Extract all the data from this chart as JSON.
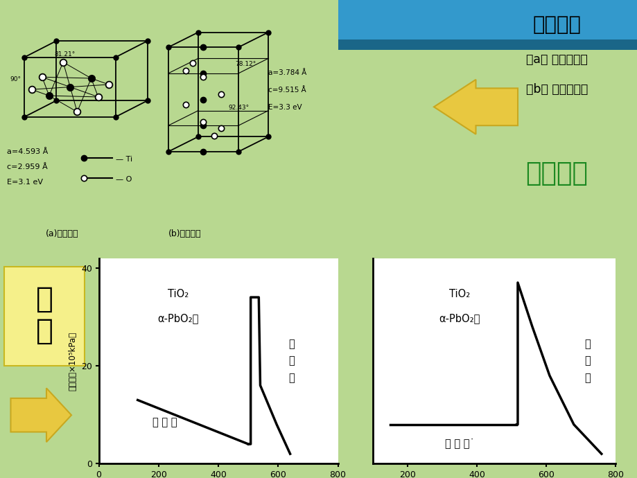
{
  "bg_main": "#b8d890",
  "top_box_bg": "#ffffff",
  "info_box_bg": "#ddeebb",
  "blue_bar_color": "#3399cc",
  "arrow_color": "#e8c840",
  "arrow_edge": "#c8a820",
  "xiang_box_bg": "#f5f08a",
  "title_text": "晶体结构",
  "subtitle1": "（a） 金红石结构",
  "subtitle2": "（b） 锐钛矿结构",
  "subtitle3": "四方晶系",
  "phase_label": "相\n图",
  "diagram1_ylabel": "压强／（×10⁵kPa）",
  "diagram1_TiO2": "TiO₂",
  "diagram1_alpha": "α-PbO₂型",
  "diagram1_phase1": "金\n红\n石",
  "diagram1_phase2": "锐 钛 矿˙",
  "diagram2_TiO2": "TiO₂",
  "diagram2_alpha": "α-PbO₂型",
  "diagram2_phase1": "金\n红\n石",
  "diagram2_phase2": "板 钛 矿˙",
  "line_color": "#000000",
  "d1_line1_x": [
    130,
    500
  ],
  "d1_line1_y": [
    13.0,
    4.0
  ],
  "d1_line2_x": [
    500,
    508,
    508,
    535,
    540,
    595,
    640
  ],
  "d1_line2_y": [
    4.0,
    4.0,
    34.0,
    34.0,
    16.0,
    8.0,
    2.0
  ],
  "d2_line1_x": [
    150,
    515
  ],
  "d2_line1_y": [
    8.0,
    8.0
  ],
  "d2_line2_x": [
    515,
    518,
    518,
    560,
    610,
    680,
    760
  ],
  "d2_line2_y": [
    8.0,
    8.0,
    37.0,
    28.0,
    18.0,
    8.0,
    2.0
  ],
  "yticks": [
    0,
    20,
    40
  ],
  "xticks1": [
    0,
    200,
    400,
    600,
    800
  ],
  "xticks2": [
    200,
    400,
    600,
    800
  ]
}
